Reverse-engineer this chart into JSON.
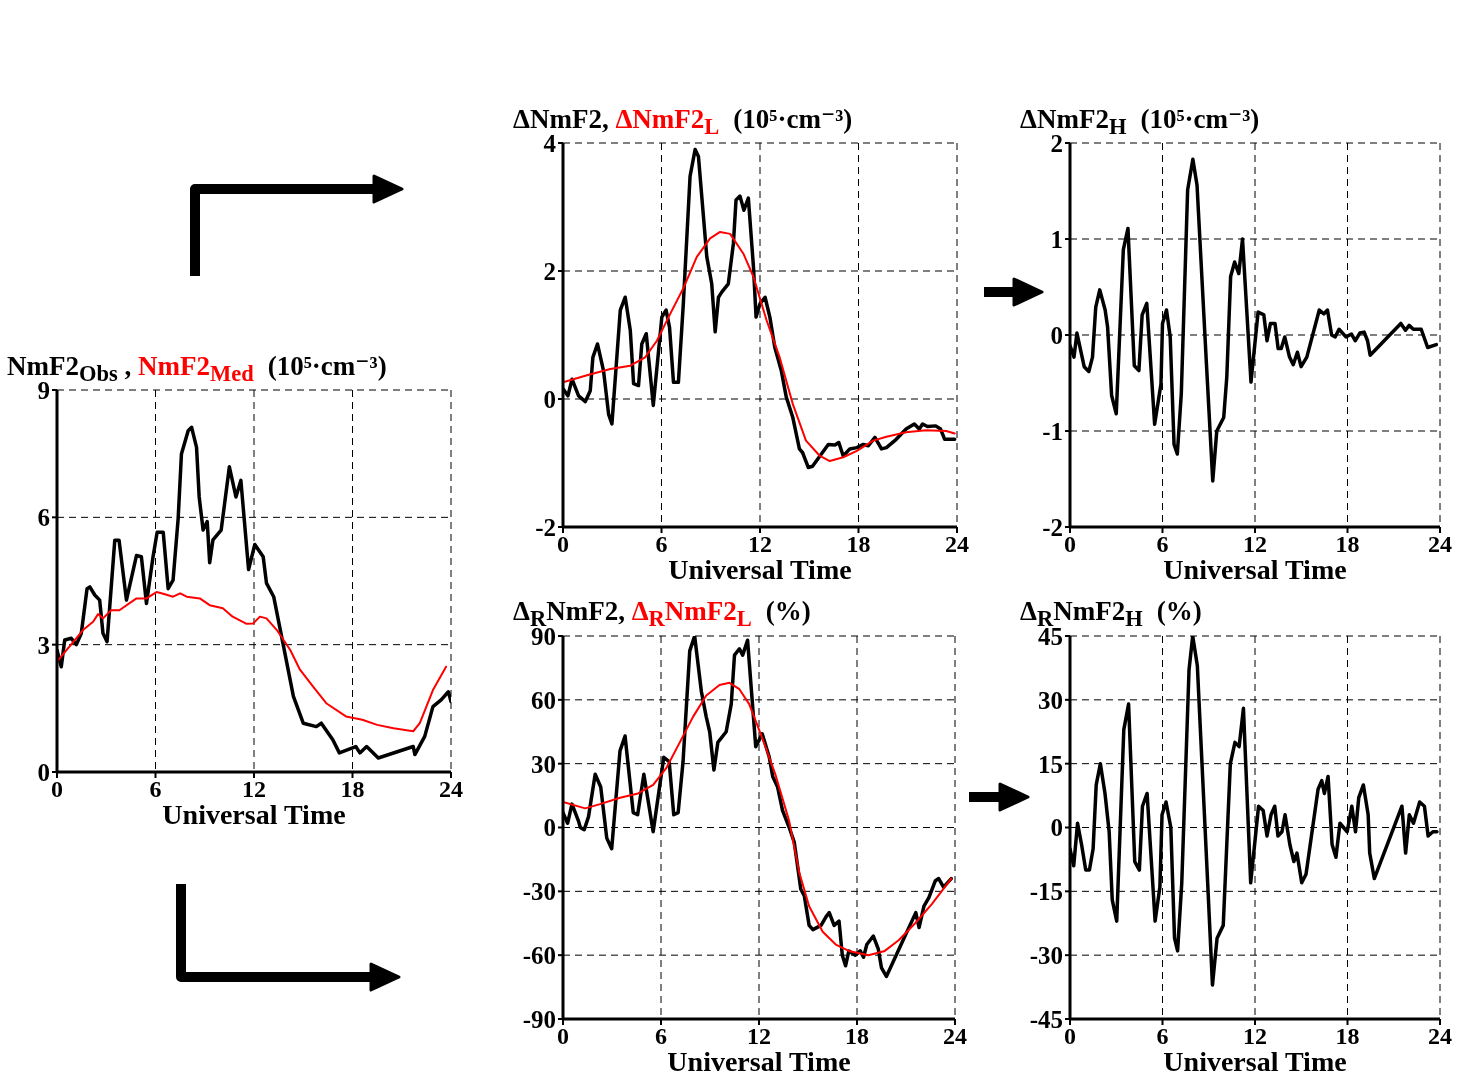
{
  "chart_data": [
    {
      "type": "line",
      "title": "(10⁵·cm⁻³)",
      "xlabel": "Universal Time",
      "xlim": [
        0,
        24
      ],
      "xticks": [
        0,
        6,
        12,
        18,
        24
      ],
      "ylim": [
        0,
        9
      ],
      "yticks": [
        0,
        3,
        6,
        9
      ],
      "grid": true,
      "marker": "none",
      "series": [
        {
          "name": "NmF2$_{Obs}$ ,",
          "color": "#000000",
          "x": [
            0,
            0.26,
            0.47,
            0.87,
            1.18,
            1.48,
            1.83,
            2.0,
            2.3,
            2.6,
            2.8,
            3.05,
            3.52,
            3.78,
            4.23,
            4.84,
            5.14,
            5.45,
            5.85,
            6.1,
            6.47,
            6.77,
            7.07,
            7.38,
            7.58,
            7.99,
            8.2,
            8.5,
            8.66,
            8.9,
            9.15,
            9.3,
            9.5,
            10.0,
            10.5,
            10.9,
            11.2,
            11.67,
            12.05,
            12.56,
            12.76,
            13.2,
            13.8,
            14.4,
            15.0,
            15.8,
            16.1,
            16.8,
            17.2,
            18.2,
            18.45,
            18.86,
            19.57,
            21.7,
            21.8,
            22.4,
            22.9,
            23.4,
            23.84,
            24.0
          ],
          "values": [
            2.87,
            2.48,
            3.11,
            3.15,
            3.0,
            3.27,
            4.32,
            4.36,
            4.17,
            4.05,
            3.27,
            3.07,
            5.46,
            5.46,
            4.05,
            5.1,
            5.07,
            3.97,
            5.07,
            5.65,
            5.65,
            4.32,
            4.52,
            5.97,
            7.49,
            8.04,
            8.12,
            7.65,
            6.48,
            5.7,
            5.9,
            4.93,
            5.47,
            5.7,
            7.19,
            6.48,
            6.87,
            4.77,
            5.36,
            5.07,
            4.45,
            4.13,
            2.96,
            1.78,
            1.15,
            1.07,
            1.15,
            0.76,
            0.45,
            0.6,
            0.45,
            0.6,
            0.33,
            0.6,
            0.41,
            0.84,
            1.54,
            1.7,
            1.89,
            1.66
          ]
        },
        {
          "name": "NmF2$_{Med}$",
          "color": "#ff0000",
          "x": [
            0,
            1.6,
            2.2,
            2.5,
            2.8,
            3.3,
            3.8,
            4.84,
            5.45,
            6.06,
            6.47,
            7.07,
            7.5,
            7.9,
            8.7,
            9.3,
            10.1,
            10.7,
            11.55,
            11.95,
            12.36,
            12.76,
            13.38,
            14.2,
            14.8,
            15.6,
            16.4,
            17.6,
            18.6,
            19.5,
            20.5,
            21.7,
            22.1,
            22.9,
            23.7
          ],
          "values": [
            2.6,
            3.35,
            3.54,
            3.72,
            3.62,
            3.81,
            3.81,
            4.09,
            4.09,
            4.24,
            4.2,
            4.13,
            4.21,
            4.13,
            4.09,
            3.93,
            3.86,
            3.66,
            3.49,
            3.5,
            3.66,
            3.62,
            3.35,
            2.88,
            2.41,
            2.01,
            1.62,
            1.31,
            1.23,
            1.11,
            1.03,
            0.96,
            1.15,
            1.93,
            2.48
          ]
        }
      ]
    },
    {
      "type": "line",
      "title": "(10⁵·cm⁻³)",
      "xlabel": "Universal Time",
      "xlim": [
        0,
        24
      ],
      "xticks": [
        0,
        6,
        12,
        18,
        24
      ],
      "ylim": [
        -2,
        4
      ],
      "yticks": [
        -2,
        0,
        2,
        4
      ],
      "grid": true,
      "marker": "none",
      "series": [
        {
          "name": "ΔNmF2,",
          "color": "#000000",
          "x": [
            0,
            0.3,
            0.55,
            0.95,
            1.36,
            1.66,
            1.82,
            2.1,
            2.47,
            2.78,
            2.98,
            3.49,
            3.79,
            4.1,
            4.3,
            4.6,
            4.8,
            5.07,
            5.5,
            6.02,
            6.28,
            6.49,
            6.73,
            7.03,
            7.33,
            7.74,
            8.05,
            8.25,
            8.76,
            9.06,
            9.27,
            9.47,
            9.67,
            10.07,
            10.38,
            10.54,
            10.78,
            11.02,
            11.29,
            11.6,
            11.76,
            12.0,
            12.31,
            12.6,
            12.9,
            13.3,
            13.6,
            14.0,
            14.4,
            14.6,
            14.94,
            15.2,
            15.65,
            16.16,
            16.56,
            16.8,
            17.07,
            17.47,
            17.9,
            18.3,
            18.6,
            19.0,
            19.4,
            19.7,
            20.3,
            20.9,
            21.4,
            21.7,
            21.9,
            22.2,
            22.7,
            23.0,
            23.25,
            23.86
          ],
          "values": [
            0.16,
            0.05,
            0.31,
            0.05,
            -0.04,
            0.13,
            0.65,
            0.86,
            0.44,
            -0.24,
            -0.39,
            1.39,
            1.59,
            1.07,
            0.24,
            0.21,
            0.86,
            1.02,
            -0.1,
            1.28,
            1.39,
            1.12,
            0.26,
            0.26,
            1.49,
            3.48,
            3.9,
            3.79,
            2.22,
            1.8,
            1.05,
            1.59,
            1.67,
            1.8,
            2.43,
            3.11,
            3.17,
            2.95,
            3.14,
            2.07,
            1.28,
            1.49,
            1.59,
            1.28,
            0.81,
            0.44,
            0.03,
            -0.29,
            -0.78,
            -0.84,
            -1.07,
            -1.05,
            -0.89,
            -0.71,
            -0.72,
            -0.68,
            -0.89,
            -0.78,
            -0.76,
            -0.71,
            -0.73,
            -0.6,
            -0.78,
            -0.76,
            -0.63,
            -0.47,
            -0.39,
            -0.47,
            -0.39,
            -0.43,
            -0.42,
            -0.47,
            -0.63,
            -0.63
          ]
        },
        {
          "name": "ΔNmF2$_{L}$",
          "color": "#ff0000",
          "x": [
            0,
            1.46,
            2.88,
            4.1,
            5.0,
            5.72,
            6.53,
            7.33,
            8.15,
            8.96,
            9.57,
            10.18,
            10.99,
            11.6,
            12.4,
            13.2,
            14.0,
            14.8,
            15.65,
            16.25,
            17.07,
            17.9,
            18.9,
            19.7,
            20.9,
            22.1,
            23.35,
            23.86
          ],
          "values": [
            0.26,
            0.37,
            0.47,
            0.52,
            0.65,
            0.91,
            1.33,
            1.73,
            2.22,
            2.51,
            2.61,
            2.58,
            2.27,
            1.91,
            1.23,
            0.65,
            -0.08,
            -0.65,
            -0.89,
            -0.97,
            -0.91,
            -0.81,
            -0.65,
            -0.59,
            -0.52,
            -0.49,
            -0.5,
            -0.54
          ]
        }
      ]
    },
    {
      "type": "line",
      "title": "(10⁵·cm⁻³)",
      "xlabel": "Universal Time",
      "xlim": [
        0,
        24
      ],
      "xticks": [
        0,
        6,
        12,
        18,
        24
      ],
      "ylim": [
        -2,
        2
      ],
      "yticks": [
        -2,
        -1,
        0,
        1,
        2
      ],
      "grid": true,
      "marker": "none",
      "series": [
        {
          "name": "ΔNmF2$_{H}$",
          "color": "#000000",
          "x": [
            0,
            0.26,
            0.45,
            0.92,
            1.22,
            1.46,
            1.67,
            1.93,
            2.28,
            2.44,
            2.7,
            3.0,
            3.46,
            3.76,
            4.17,
            4.47,
            4.68,
            4.98,
            5.49,
            5.9,
            6.0,
            6.26,
            6.5,
            6.75,
            6.96,
            7.22,
            7.63,
            7.97,
            8.24,
            8.85,
            9.26,
            9.52,
            9.97,
            10.17,
            10.42,
            10.68,
            10.95,
            11.19,
            11.74,
            12.2,
            12.57,
            12.78,
            13.0,
            13.3,
            13.5,
            13.7,
            13.93,
            14.24,
            14.48,
            14.75,
            14.99,
            15.36,
            16.17,
            16.47,
            16.7,
            16.97,
            17.2,
            17.45,
            17.9,
            18.26,
            18.5,
            18.8,
            19.08,
            19.3,
            19.47,
            21.46,
            21.76,
            22.0,
            22.27,
            22.78,
            23.2,
            23.76
          ],
          "values": [
            -0.11,
            -0.23,
            0.02,
            -0.33,
            -0.38,
            -0.23,
            0.29,
            0.47,
            0.26,
            0.08,
            -0.63,
            -0.82,
            0.89,
            1.11,
            -0.32,
            -0.37,
            0.21,
            0.33,
            -0.93,
            -0.51,
            0.12,
            0.26,
            -0.02,
            -1.14,
            -1.24,
            -0.61,
            1.51,
            1.83,
            1.56,
            -0.3,
            -1.52,
            -1.0,
            -0.86,
            -0.44,
            0.61,
            0.76,
            0.64,
            1.0,
            -0.49,
            0.24,
            0.21,
            -0.06,
            0.12,
            0.12,
            -0.14,
            -0.14,
            -0.02,
            -0.23,
            -0.31,
            -0.18,
            -0.33,
            -0.23,
            0.26,
            0.22,
            0.26,
            0.0,
            -0.02,
            0.06,
            -0.02,
            0.01,
            -0.06,
            0.02,
            0.03,
            -0.06,
            -0.21,
            0.12,
            0.05,
            0.1,
            0.06,
            0.06,
            -0.13,
            -0.1
          ]
        }
      ]
    },
    {
      "type": "line",
      "title": "(%)",
      "xlabel": "Universal Time",
      "xlim": [
        0,
        24
      ],
      "xticks": [
        0,
        6,
        12,
        18,
        24
      ],
      "ylim": [
        -90,
        90
      ],
      "yticks": [
        -90,
        -60,
        -30,
        0,
        30,
        60,
        90
      ],
      "grid": true,
      "marker": "none",
      "series": [
        {
          "name": "Δ$_{R}$NmF2,",
          "color": "#000000",
          "x": [
            0,
            0.28,
            0.55,
            0.95,
            1.06,
            1.3,
            1.56,
            1.97,
            2.31,
            2.68,
            2.98,
            3.49,
            3.8,
            4.3,
            4.57,
            4.95,
            5.52,
            6.17,
            6.5,
            6.78,
            7.05,
            7.35,
            7.76,
            8.06,
            8.47,
            8.77,
            8.98,
            9.24,
            9.48,
            9.99,
            10.3,
            10.5,
            10.8,
            11.0,
            11.3,
            11.8,
            12.2,
            12.63,
            12.84,
            13.14,
            13.44,
            13.85,
            14.16,
            14.56,
            14.77,
            15.07,
            15.3,
            15.8,
            16.1,
            16.3,
            16.6,
            16.9,
            17.1,
            17.3,
            17.5,
            17.9,
            18.2,
            18.4,
            18.6,
            19.0,
            19.3,
            19.5,
            19.8,
            20.7,
            21.6,
            21.8,
            22.1,
            22.4,
            22.8,
            23.0,
            23.3,
            23.77
          ],
          "values": [
            7,
            2,
            11,
            3,
            0,
            -1,
            5,
            25,
            19,
            -5,
            -10,
            36,
            43,
            7,
            6,
            25,
            -2,
            33,
            31,
            6,
            7,
            31,
            83,
            90,
            64,
            52,
            45,
            27,
            40,
            45,
            58,
            81,
            84,
            81,
            88,
            38,
            44,
            33,
            24,
            19,
            8,
            0,
            -7,
            -29,
            -32,
            -46,
            -48,
            -46,
            -42,
            -40,
            -46,
            -44,
            -60,
            -65,
            -58,
            -60,
            -58,
            -61,
            -55,
            -51,
            -57,
            -66,
            -70,
            -55,
            -40,
            -47,
            -37,
            -33,
            -25,
            -24,
            -28,
            -24
          ]
        },
        {
          "name": "Δ$_{R}$NmF2$_{L}$",
          "color": "#ff0000",
          "x": [
            0,
            1.36,
            2.27,
            3.49,
            4.6,
            5.52,
            6.33,
            7.15,
            7.96,
            8.77,
            9.58,
            10.19,
            10.8,
            11.4,
            12.2,
            13.0,
            13.85,
            14.46,
            15.07,
            15.9,
            16.7,
            17.5,
            18.7,
            19.7,
            20.55,
            21.56,
            22.58,
            23.77
          ],
          "values": [
            12,
            9,
            11,
            14,
            16,
            20,
            28,
            40,
            52,
            62,
            67,
            68,
            65,
            58,
            42,
            25,
            3,
            -21,
            -37,
            -49,
            -55,
            -58,
            -60,
            -58,
            -53,
            -45,
            -36,
            -24
          ]
        }
      ]
    },
    {
      "type": "line",
      "title": "(%)",
      "xlabel": "Universal Time",
      "xlim": [
        0,
        24
      ],
      "xticks": [
        0,
        6,
        12,
        18,
        24
      ],
      "ylim": [
        -45,
        45
      ],
      "yticks": [
        -45,
        -30,
        -15,
        0,
        15,
        30,
        45
      ],
      "grid": true,
      "marker": "none",
      "series": [
        {
          "name": "Δ$_{R}$NmF2$_{H}$",
          "color": "#000000",
          "x": [
            0,
            0.24,
            0.49,
            0.75,
            1.02,
            1.26,
            1.5,
            1.7,
            1.97,
            2.27,
            2.54,
            2.74,
            3.03,
            3.49,
            3.8,
            4.2,
            4.5,
            4.7,
            5.0,
            5.52,
            5.83,
            5.97,
            6.23,
            6.54,
            6.78,
            6.98,
            7.25,
            7.72,
            7.96,
            8.26,
            8.93,
            9.24,
            9.54,
            9.94,
            10.4,
            10.7,
            10.97,
            11.25,
            11.72,
            12.23,
            12.53,
            12.78,
            13.04,
            13.28,
            13.49,
            13.75,
            13.95,
            14.26,
            14.52,
            14.72,
            15.03,
            15.31,
            16.09,
            16.33,
            16.5,
            16.74,
            17.0,
            17.25,
            17.51,
            17.98,
            18.28,
            18.52,
            18.73,
            19.03,
            19.34,
            19.44,
            19.74,
            21.53,
            21.77,
            22.01,
            22.28,
            22.68,
            22.99,
            23.23,
            23.54,
            23.8
          ],
          "values": [
            -5,
            -9,
            1,
            -4,
            -10,
            -10,
            -5,
            10,
            15,
            8,
            -1,
            -17,
            -22,
            23,
            29,
            -8,
            -10,
            5,
            8,
            -22,
            -14,
            3,
            6,
            0,
            -26,
            -29,
            -13,
            37,
            45,
            38,
            -13,
            -37,
            -26,
            -23,
            15,
            20,
            19,
            28,
            -13,
            5,
            4,
            -2,
            3,
            5,
            -2,
            -1,
            3,
            -4,
            -8,
            -6,
            -13,
            -11,
            9,
            11,
            8,
            12,
            -4,
            -7,
            1,
            -1,
            5,
            -1,
            7,
            10,
            3,
            -6,
            -12,
            5,
            -6,
            3,
            1,
            6,
            5,
            -2,
            -1,
            -1
          ]
        }
      ]
    }
  ]
}
